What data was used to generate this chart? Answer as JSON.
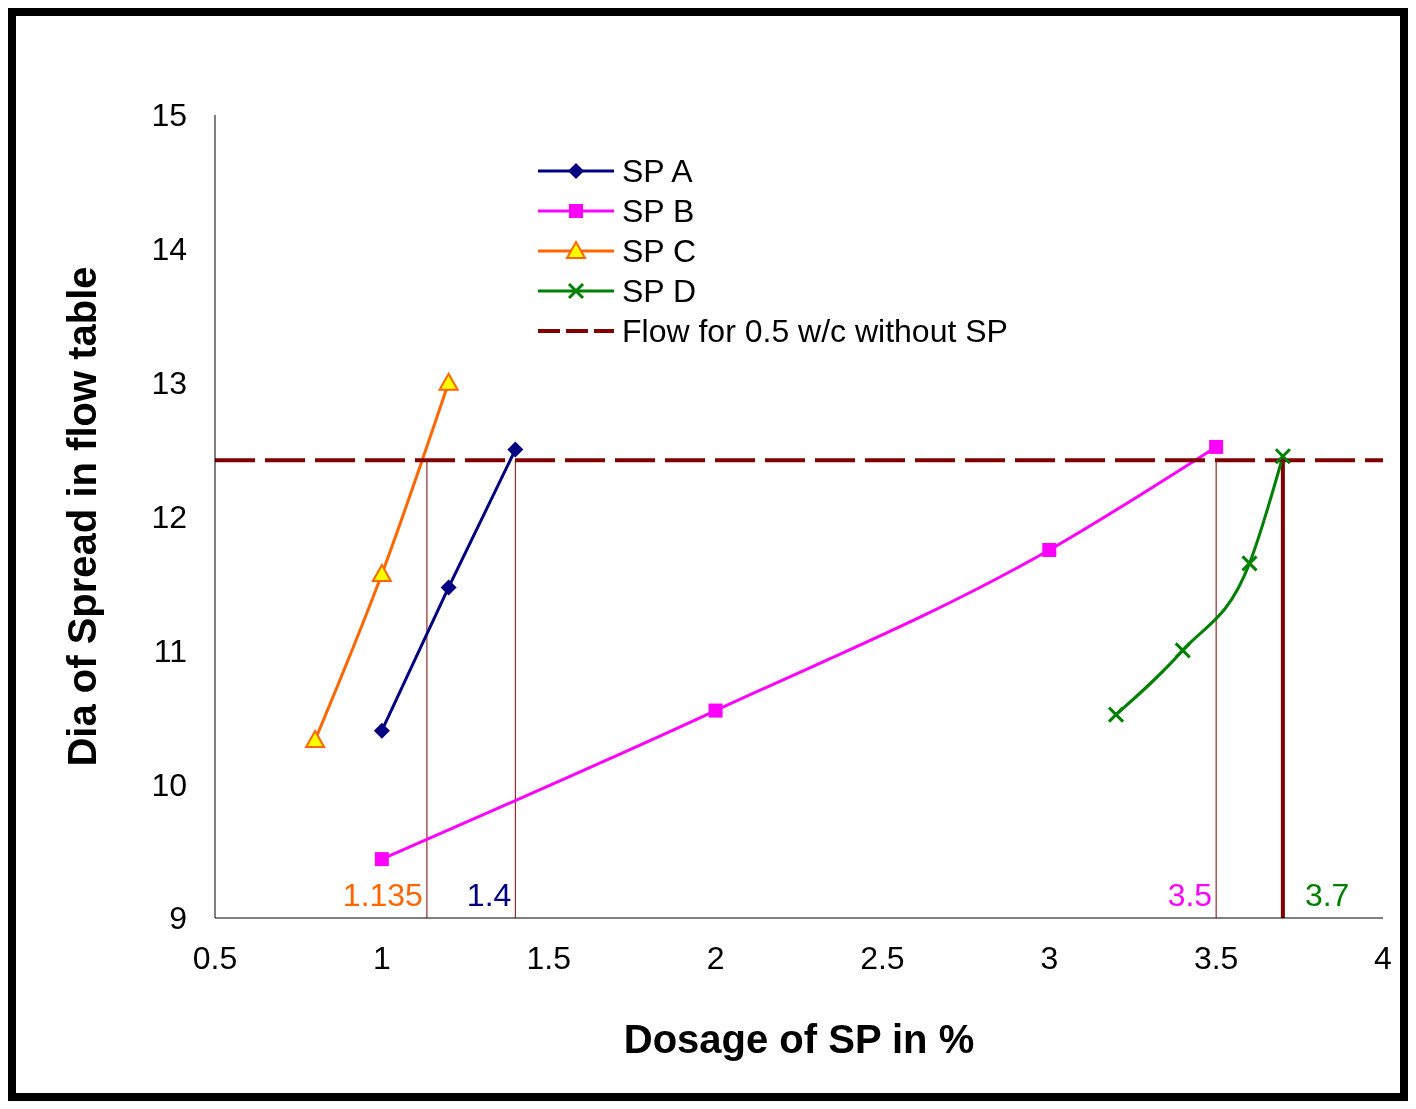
{
  "chart_data": {
    "type": "line",
    "xlabel": "Dosage of SP in %",
    "ylabel": "Dia of Spread in flow table",
    "xlim": [
      0.5,
      4
    ],
    "xticks": [
      0.5,
      1,
      1.5,
      2,
      2.5,
      3,
      3.5,
      4
    ],
    "ylim": [
      9,
      15
    ],
    "yticks": [
      9,
      10,
      11,
      12,
      13,
      14,
      15
    ],
    "grid": false,
    "legend": "top left",
    "series": [
      {
        "name": "SP A",
        "color": "#000080",
        "marker": "diamond",
        "x": [
          1,
          1.2,
          1.4
        ],
        "values": [
          10.4,
          11.47,
          12.5
        ]
      },
      {
        "name": "SP B",
        "color": "#ff00ff",
        "marker": "square",
        "x": [
          1,
          2,
          3,
          3.5
        ],
        "values": [
          9.44,
          10.55,
          11.75,
          12.52
        ]
      },
      {
        "name": "SP C",
        "color": "#ff6600",
        "marker": "triangle",
        "x": [
          0.8,
          1,
          1.2
        ],
        "values": [
          10.33,
          11.57,
          13.0
        ]
      },
      {
        "name": "SP D",
        "color": "#008000",
        "marker": "cross",
        "x": [
          3.2,
          3.4,
          3.6,
          3.7
        ],
        "values": [
          10.52,
          11.0,
          11.65,
          12.45
        ]
      },
      {
        "name": "Flow for 0.5 w/c without SP",
        "color": "#800000",
        "marker": "none",
        "line_style": "dashed",
        "x": [
          0.5,
          4
        ],
        "values": [
          12.42,
          12.42
        ]
      }
    ],
    "ref_lines": [
      {
        "axis": "x",
        "value": 1.135,
        "label": "1.135",
        "color": "#800000"
      },
      {
        "axis": "x",
        "value": 1.4,
        "label": "1.4",
        "color": "#800000"
      },
      {
        "axis": "x",
        "value": 3.5,
        "label": "3.5",
        "color": "#800000"
      },
      {
        "axis": "x",
        "value": 3.7,
        "label": "3.7",
        "color": "#800000"
      }
    ]
  }
}
